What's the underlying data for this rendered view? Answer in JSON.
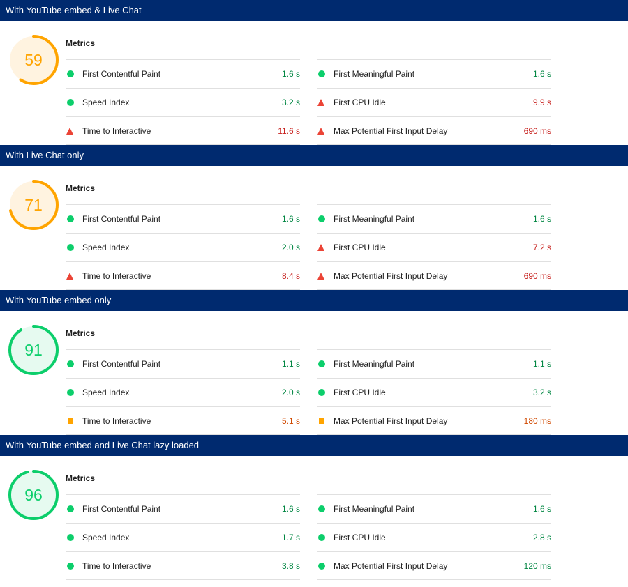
{
  "metrics_heading": "Metrics",
  "colors": {
    "banner": "#002a6f",
    "pass": "#0cce6b",
    "pass_text": "#018642",
    "average": "#ffa400",
    "average_text": "#d04900",
    "fail": "#eb4436",
    "fail_text": "#c7221f"
  },
  "sections": [
    {
      "title": "With YouTube embed & Live Chat",
      "score": "59",
      "score_status": "average",
      "metrics": [
        {
          "label": "First Contentful Paint",
          "value": "1.6 s",
          "status": "pass"
        },
        {
          "label": "First Meaningful Paint",
          "value": "1.6 s",
          "status": "pass"
        },
        {
          "label": "Speed Index",
          "value": "3.2 s",
          "status": "pass"
        },
        {
          "label": "First CPU Idle",
          "value": "9.9 s",
          "status": "fail"
        },
        {
          "label": "Time to Interactive",
          "value": "11.6 s",
          "status": "fail"
        },
        {
          "label": "Max Potential First Input Delay",
          "value": "690 ms",
          "status": "fail"
        }
      ]
    },
    {
      "title": "With Live Chat only",
      "score": "71",
      "score_status": "average",
      "metrics": [
        {
          "label": "First Contentful Paint",
          "value": "1.6 s",
          "status": "pass"
        },
        {
          "label": "First Meaningful Paint",
          "value": "1.6 s",
          "status": "pass"
        },
        {
          "label": "Speed Index",
          "value": "2.0 s",
          "status": "pass"
        },
        {
          "label": "First CPU Idle",
          "value": "7.2 s",
          "status": "fail"
        },
        {
          "label": "Time to Interactive",
          "value": "8.4 s",
          "status": "fail"
        },
        {
          "label": "Max Potential First Input Delay",
          "value": "690 ms",
          "status": "fail"
        }
      ]
    },
    {
      "title": "With YouTube embed only",
      "score": "91",
      "score_status": "pass",
      "metrics": [
        {
          "label": "First Contentful Paint",
          "value": "1.1 s",
          "status": "pass"
        },
        {
          "label": "First Meaningful Paint",
          "value": "1.1 s",
          "status": "pass"
        },
        {
          "label": "Speed Index",
          "value": "2.0 s",
          "status": "pass"
        },
        {
          "label": "First CPU Idle",
          "value": "3.2 s",
          "status": "pass"
        },
        {
          "label": "Time to Interactive",
          "value": "5.1 s",
          "status": "average"
        },
        {
          "label": "Max Potential First Input Delay",
          "value": "180 ms",
          "status": "average"
        }
      ]
    },
    {
      "title": "With YouTube embed and Live Chat lazy loaded",
      "score": "96",
      "score_status": "pass",
      "metrics": [
        {
          "label": "First Contentful Paint",
          "value": "1.6 s",
          "status": "pass"
        },
        {
          "label": "First Meaningful Paint",
          "value": "1.6 s",
          "status": "pass"
        },
        {
          "label": "Speed Index",
          "value": "1.7 s",
          "status": "pass"
        },
        {
          "label": "First CPU Idle",
          "value": "2.8 s",
          "status": "pass"
        },
        {
          "label": "Time to Interactive",
          "value": "3.8 s",
          "status": "pass"
        },
        {
          "label": "Max Potential First Input Delay",
          "value": "120 ms",
          "status": "pass"
        }
      ]
    }
  ]
}
